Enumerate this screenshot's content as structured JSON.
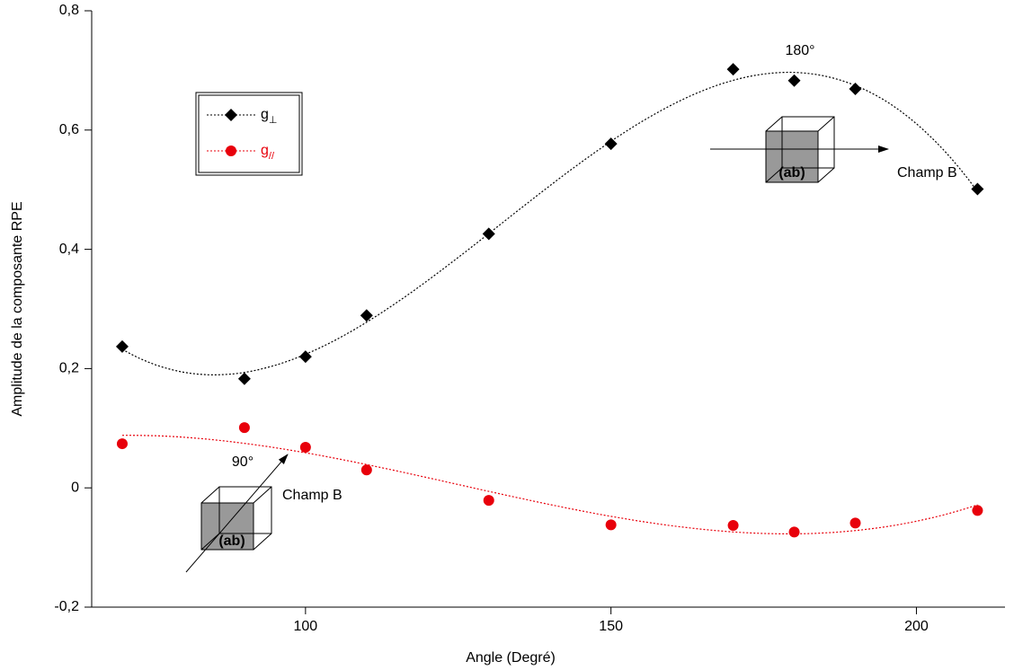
{
  "chart_data": {
    "type": "scatter",
    "x_label": "Angle (Degré)",
    "y_label": "Amplitude de la composante RPE",
    "xlim": [
      65,
      214.5
    ],
    "ylim": [
      -0.2,
      0.8
    ],
    "xticks": [
      100,
      150,
      200
    ],
    "yticks": [
      {
        "value": -0.2,
        "label": "-0,2"
      },
      0,
      {
        "value": 0.2,
        "label": "0,2"
      },
      {
        "value": 0.4,
        "label": "0,4"
      },
      {
        "value": 0.6,
        "label": "0,6"
      },
      {
        "value": 0.8,
        "label": "0,8"
      }
    ],
    "x": [
      70,
      90,
      100,
      110,
      130,
      150,
      170,
      180,
      190,
      210
    ],
    "series": [
      {
        "name": "g⊥",
        "color": "#000000",
        "marker": "diamond",
        "values": [
          0.237,
          0.183,
          0.22,
          0.289,
          0.426,
          0.577,
          0.702,
          0.683,
          0.669,
          0.501
        ]
      },
      {
        "name": "g//",
        "color": "#e8000b",
        "marker": "circle",
        "values": [
          0.074,
          0.101,
          0.068,
          0.03,
          -0.021,
          -0.062,
          -0.063,
          -0.074,
          -0.059,
          -0.038
        ]
      }
    ],
    "annotations": [
      "180°",
      "(ab)",
      "Champ B",
      "90°",
      "(ab)",
      "Champ B"
    ]
  }
}
